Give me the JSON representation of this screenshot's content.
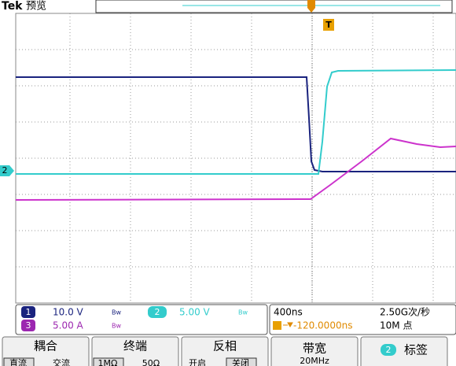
{
  "header": {
    "brand": "Tek",
    "mode": "预览",
    "trigger_marker": "T",
    "ch2_marker": "2"
  },
  "readout": {
    "ch1": {
      "number": "1",
      "scale": "10.0 V"
    },
    "ch2": {
      "number": "2",
      "scale": "5.00 V"
    },
    "ch3": {
      "number": "3",
      "scale": "5.00 A"
    },
    "timebase": "400ns",
    "sample_rate": "2.50G次/秒",
    "trigger_position": "-120.0000ns",
    "record_length": "10M 点"
  },
  "menu": [
    {
      "title": "耦合",
      "options": [
        "直流",
        "交流"
      ]
    },
    {
      "title": "终端",
      "options": [
        "1MΩ",
        "50Ω"
      ]
    },
    {
      "title": "反相",
      "options": [
        "开启",
        "关闭"
      ]
    },
    {
      "title": "带宽",
      "options": [
        "20MHz"
      ]
    },
    {
      "badge": "2",
      "title": "标签"
    }
  ]
}
